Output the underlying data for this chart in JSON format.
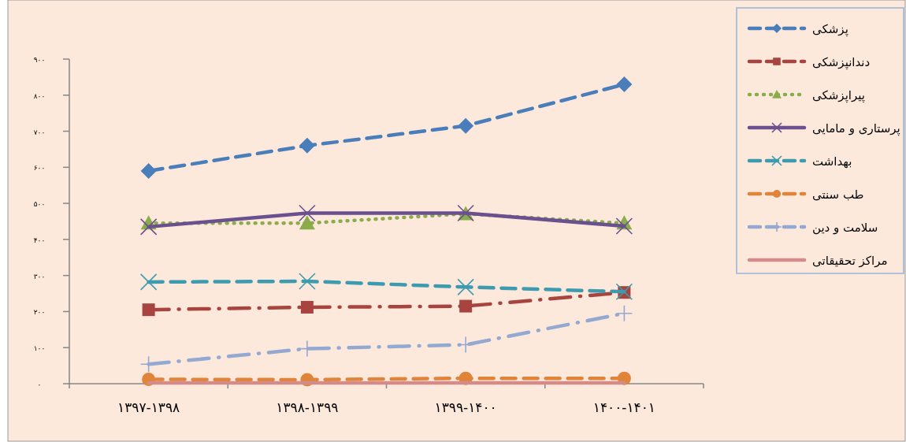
{
  "chart_data": {
    "type": "line",
    "categories": [
      "۱۳۹۷-۱۳۹۸",
      "۱۳۹۸-۱۳۹۹",
      "۱۳۹۹-۱۴۰۰",
      "۱۴۰۰-۱۴۰۱"
    ],
    "ylim": [
      0,
      900
    ],
    "yticks": [
      {
        "value": 0,
        "label": "۰"
      },
      {
        "value": 100,
        "label": "۱۰۰"
      },
      {
        "value": 200,
        "label": "۲۰۰"
      },
      {
        "value": 300,
        "label": "۳۰۰"
      },
      {
        "value": 400,
        "label": "۴۰۰"
      },
      {
        "value": 500,
        "label": "۵۰۰"
      },
      {
        "value": 600,
        "label": "۶۰۰"
      },
      {
        "value": 700,
        "label": "۷۰۰"
      },
      {
        "value": 800,
        "label": "۸۰۰"
      },
      {
        "value": 900,
        "label": "۹۰۰"
      }
    ],
    "grid": false,
    "legend": "right",
    "series": [
      {
        "name": "پزشکی",
        "color": "#4a7ebb",
        "marker": "diamond",
        "line_style": "dashed",
        "values": [
          590,
          660,
          715,
          830
        ]
      },
      {
        "name": "دندانپزشکی",
        "color": "#a84440",
        "marker": "square",
        "line_style": "dashdot",
        "values": [
          205,
          212,
          215,
          253
        ]
      },
      {
        "name": "پیراپزشکی",
        "color": "#8aac4a",
        "marker": "triangle",
        "line_style": "dotted",
        "values": [
          445,
          445,
          471,
          445
        ]
      },
      {
        "name": "پرستاری و مامایی",
        "color": "#6a508f",
        "marker": "cross",
        "line_style": "solid",
        "values": [
          435,
          473,
          473,
          437
        ]
      },
      {
        "name": "بهداشت",
        "color": "#3d9bb0",
        "marker": "cross",
        "line_style": "dashed",
        "values": [
          282,
          284,
          268,
          255
        ]
      },
      {
        "name": "طب سنتی",
        "color": "#e0843a",
        "marker": "circle",
        "line_style": "dashed",
        "values": [
          12,
          11,
          15,
          15
        ]
      },
      {
        "name": "سلامت و دین",
        "color": "#93a9d2",
        "marker": "plus",
        "line_style": "dashdot",
        "values": [
          54,
          97,
          108,
          195
        ]
      },
      {
        "name": "مراکز تحقیقاتی",
        "color": "#d48c8a",
        "marker": "none",
        "line_style": "solid",
        "values": [
          2,
          2,
          2,
          2
        ]
      }
    ]
  }
}
